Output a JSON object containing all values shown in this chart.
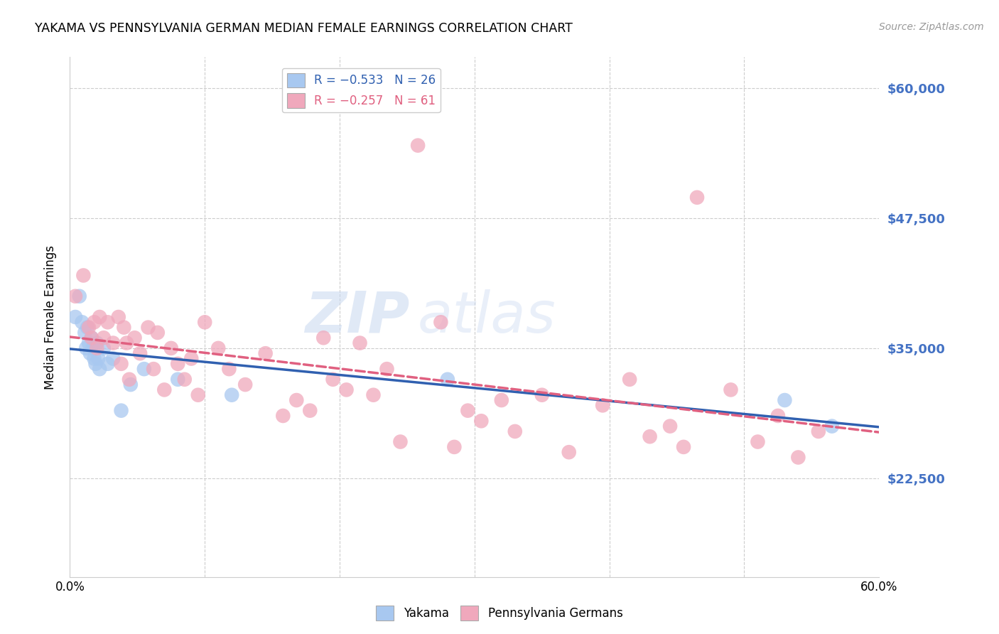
{
  "title": "YAKAMA VS PENNSYLVANIA GERMAN MEDIAN FEMALE EARNINGS CORRELATION CHART",
  "source": "Source: ZipAtlas.com",
  "ylabel": "Median Female Earnings",
  "y_ticks": [
    22500,
    35000,
    47500,
    60000
  ],
  "y_tick_labels": [
    "$22,500",
    "$35,000",
    "$47,500",
    "$60,000"
  ],
  "x_min": 0.0,
  "x_max": 0.6,
  "y_min": 13000,
  "y_max": 63000,
  "watermark_zip": "ZIP",
  "watermark_atlas": "atlas",
  "yakama_color": "#a8c8f0",
  "pa_german_color": "#f0a8bc",
  "yakama_line_color": "#3060b0",
  "pa_german_line_color": "#e06080",
  "yakama_points": [
    [
      0.004,
      38000
    ],
    [
      0.007,
      40000
    ],
    [
      0.009,
      37500
    ],
    [
      0.011,
      36500
    ],
    [
      0.012,
      35000
    ],
    [
      0.013,
      37000
    ],
    [
      0.014,
      35500
    ],
    [
      0.015,
      34500
    ],
    [
      0.016,
      36000
    ],
    [
      0.017,
      35000
    ],
    [
      0.018,
      34000
    ],
    [
      0.019,
      33500
    ],
    [
      0.02,
      35500
    ],
    [
      0.021,
      34000
    ],
    [
      0.022,
      33000
    ],
    [
      0.025,
      35000
    ],
    [
      0.028,
      33500
    ],
    [
      0.032,
      34000
    ],
    [
      0.038,
      29000
    ],
    [
      0.045,
      31500
    ],
    [
      0.055,
      33000
    ],
    [
      0.08,
      32000
    ],
    [
      0.12,
      30500
    ],
    [
      0.28,
      32000
    ],
    [
      0.53,
      30000
    ],
    [
      0.565,
      27500
    ]
  ],
  "pa_german_points": [
    [
      0.004,
      40000
    ],
    [
      0.01,
      42000
    ],
    [
      0.014,
      37000
    ],
    [
      0.016,
      36000
    ],
    [
      0.018,
      37500
    ],
    [
      0.02,
      35000
    ],
    [
      0.022,
      38000
    ],
    [
      0.025,
      36000
    ],
    [
      0.028,
      37500
    ],
    [
      0.032,
      35500
    ],
    [
      0.036,
      38000
    ],
    [
      0.038,
      33500
    ],
    [
      0.04,
      37000
    ],
    [
      0.042,
      35500
    ],
    [
      0.044,
      32000
    ],
    [
      0.048,
      36000
    ],
    [
      0.052,
      34500
    ],
    [
      0.058,
      37000
    ],
    [
      0.062,
      33000
    ],
    [
      0.065,
      36500
    ],
    [
      0.07,
      31000
    ],
    [
      0.075,
      35000
    ],
    [
      0.08,
      33500
    ],
    [
      0.085,
      32000
    ],
    [
      0.09,
      34000
    ],
    [
      0.095,
      30500
    ],
    [
      0.1,
      37500
    ],
    [
      0.11,
      35000
    ],
    [
      0.118,
      33000
    ],
    [
      0.13,
      31500
    ],
    [
      0.145,
      34500
    ],
    [
      0.158,
      28500
    ],
    [
      0.168,
      30000
    ],
    [
      0.178,
      29000
    ],
    [
      0.188,
      36000
    ],
    [
      0.195,
      32000
    ],
    [
      0.205,
      31000
    ],
    [
      0.215,
      35500
    ],
    [
      0.225,
      30500
    ],
    [
      0.235,
      33000
    ],
    [
      0.245,
      26000
    ],
    [
      0.258,
      54500
    ],
    [
      0.275,
      37500
    ],
    [
      0.285,
      25500
    ],
    [
      0.295,
      29000
    ],
    [
      0.305,
      28000
    ],
    [
      0.32,
      30000
    ],
    [
      0.33,
      27000
    ],
    [
      0.35,
      30500
    ],
    [
      0.37,
      25000
    ],
    [
      0.395,
      29500
    ],
    [
      0.415,
      32000
    ],
    [
      0.43,
      26500
    ],
    [
      0.445,
      27500
    ],
    [
      0.455,
      25500
    ],
    [
      0.465,
      49500
    ],
    [
      0.49,
      31000
    ],
    [
      0.51,
      26000
    ],
    [
      0.525,
      28500
    ],
    [
      0.54,
      24500
    ],
    [
      0.555,
      27000
    ]
  ]
}
